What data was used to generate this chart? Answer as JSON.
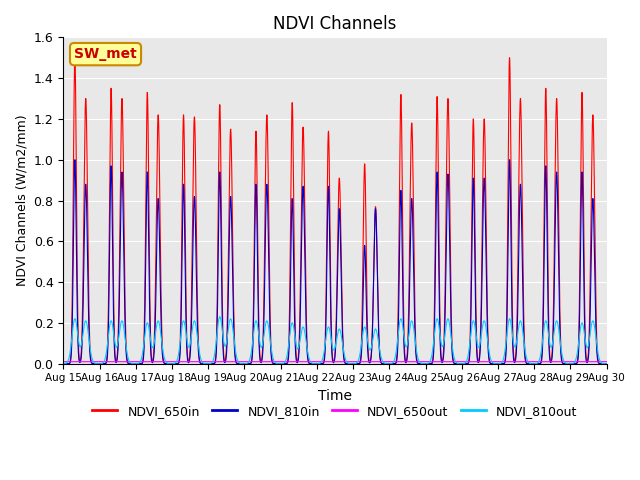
{
  "title": "NDVI Channels",
  "ylabel": "NDVI Channels (W/m2/mm)",
  "xlabel": "Time",
  "ylim": [
    0.0,
    1.6
  ],
  "yticks": [
    0.0,
    0.2,
    0.4,
    0.6,
    0.8,
    1.0,
    1.2,
    1.4,
    1.6
  ],
  "xtick_labels": [
    "Aug 15",
    "Aug 16",
    "Aug 17",
    "Aug 18",
    "Aug 19",
    "Aug 20",
    "Aug 21",
    "Aug 22",
    "Aug 23",
    "Aug 24",
    "Aug 25",
    "Aug 26",
    "Aug 27",
    "Aug 28",
    "Aug 29",
    "Aug 30"
  ],
  "colors": {
    "NDVI_650in": "#ff0000",
    "NDVI_810in": "#0000cc",
    "NDVI_650out": "#ff00ff",
    "NDVI_810out": "#00ccff"
  },
  "bg_color": "#e8e8e8",
  "annotation_text": "SW_met",
  "annotation_color": "#cc0000",
  "annotation_bg": "#ffff99",
  "annotation_border": "#cc8800",
  "n_days": 15,
  "peak1_650in": [
    1.5,
    1.35,
    1.33,
    1.22,
    1.27,
    1.14,
    1.28,
    1.14,
    0.98,
    1.32,
    1.31,
    1.2,
    1.5,
    1.35,
    1.33
  ],
  "peak2_650in": [
    1.3,
    1.3,
    1.22,
    1.21,
    1.15,
    1.22,
    1.16,
    0.91,
    0.77,
    1.18,
    1.3,
    1.2,
    1.3,
    1.3,
    1.22
  ],
  "peak1_810in": [
    1.0,
    0.97,
    0.94,
    0.88,
    0.94,
    0.88,
    0.81,
    0.87,
    0.58,
    0.85,
    0.94,
    0.91,
    1.0,
    0.97,
    0.94
  ],
  "peak2_810in": [
    0.88,
    0.94,
    0.81,
    0.82,
    0.82,
    0.88,
    0.87,
    0.76,
    0.76,
    0.81,
    0.93,
    0.91,
    0.88,
    0.94,
    0.81
  ],
  "peak1_810out": [
    0.22,
    0.21,
    0.2,
    0.21,
    0.23,
    0.21,
    0.2,
    0.18,
    0.18,
    0.22,
    0.22,
    0.21,
    0.22,
    0.21,
    0.2
  ],
  "peak2_810out": [
    0.21,
    0.21,
    0.21,
    0.21,
    0.22,
    0.21,
    0.18,
    0.17,
    0.17,
    0.21,
    0.22,
    0.21,
    0.21,
    0.21,
    0.21
  ]
}
